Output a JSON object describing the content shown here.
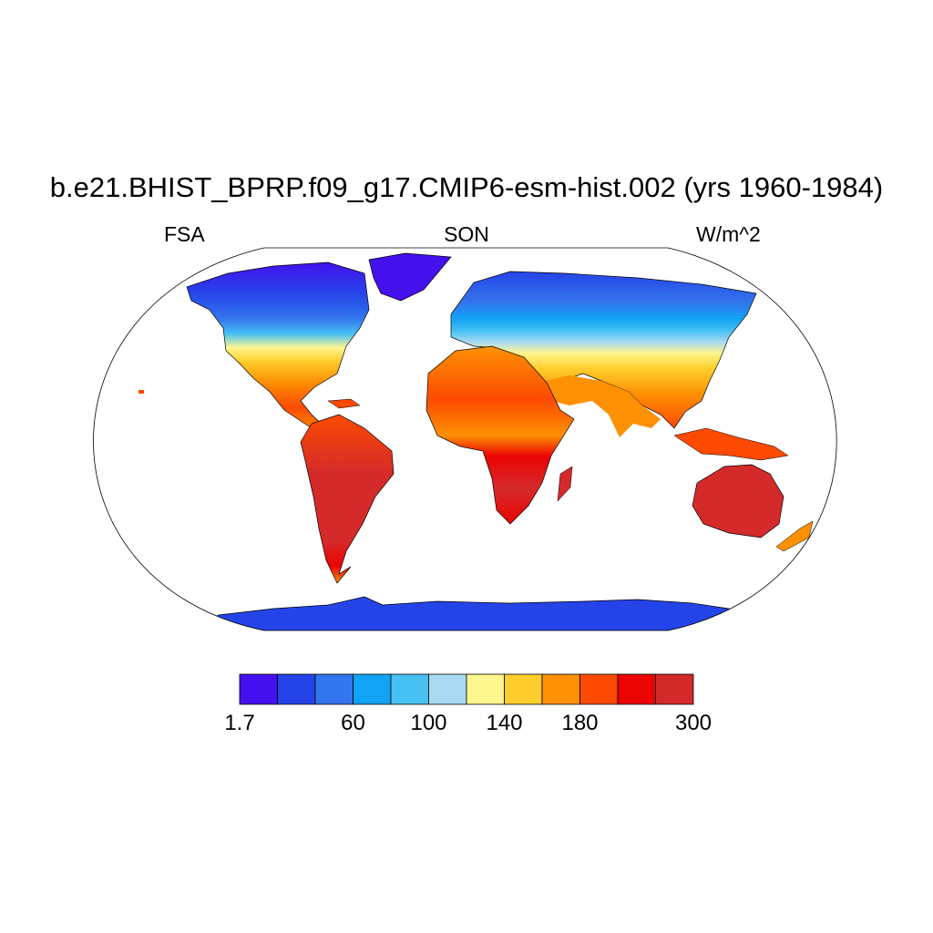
{
  "title": "b.e21.BHIST_BPRP.f09_g17.CMIP6-esm-hist.002 (yrs 1960-1984)",
  "subtitle_left": "FSA",
  "subtitle_center": "SON",
  "subtitle_right": "W/m^2",
  "colorbar": {
    "colors": [
      "#4411ee",
      "#2544e8",
      "#3376ee",
      "#12a3f5",
      "#47c1f3",
      "#a9daf2",
      "#fdf68f",
      "#fece2c",
      "#fd9103",
      "#fc4a02",
      "#ec0303",
      "#d52a2a"
    ],
    "tick_labels": [
      {
        "label": "1.7",
        "boundary": 0
      },
      {
        "label": "60",
        "boundary": 3
      },
      {
        "label": "100",
        "boundary": 5
      },
      {
        "label": "140",
        "boundary": 7
      },
      {
        "label": "180",
        "boundary": 9
      },
      {
        "label": "300",
        "boundary": 12
      }
    ]
  },
  "colors": {
    "land_outline": "#000000",
    "map_border": "#000000",
    "ocean": "#ffffff"
  }
}
